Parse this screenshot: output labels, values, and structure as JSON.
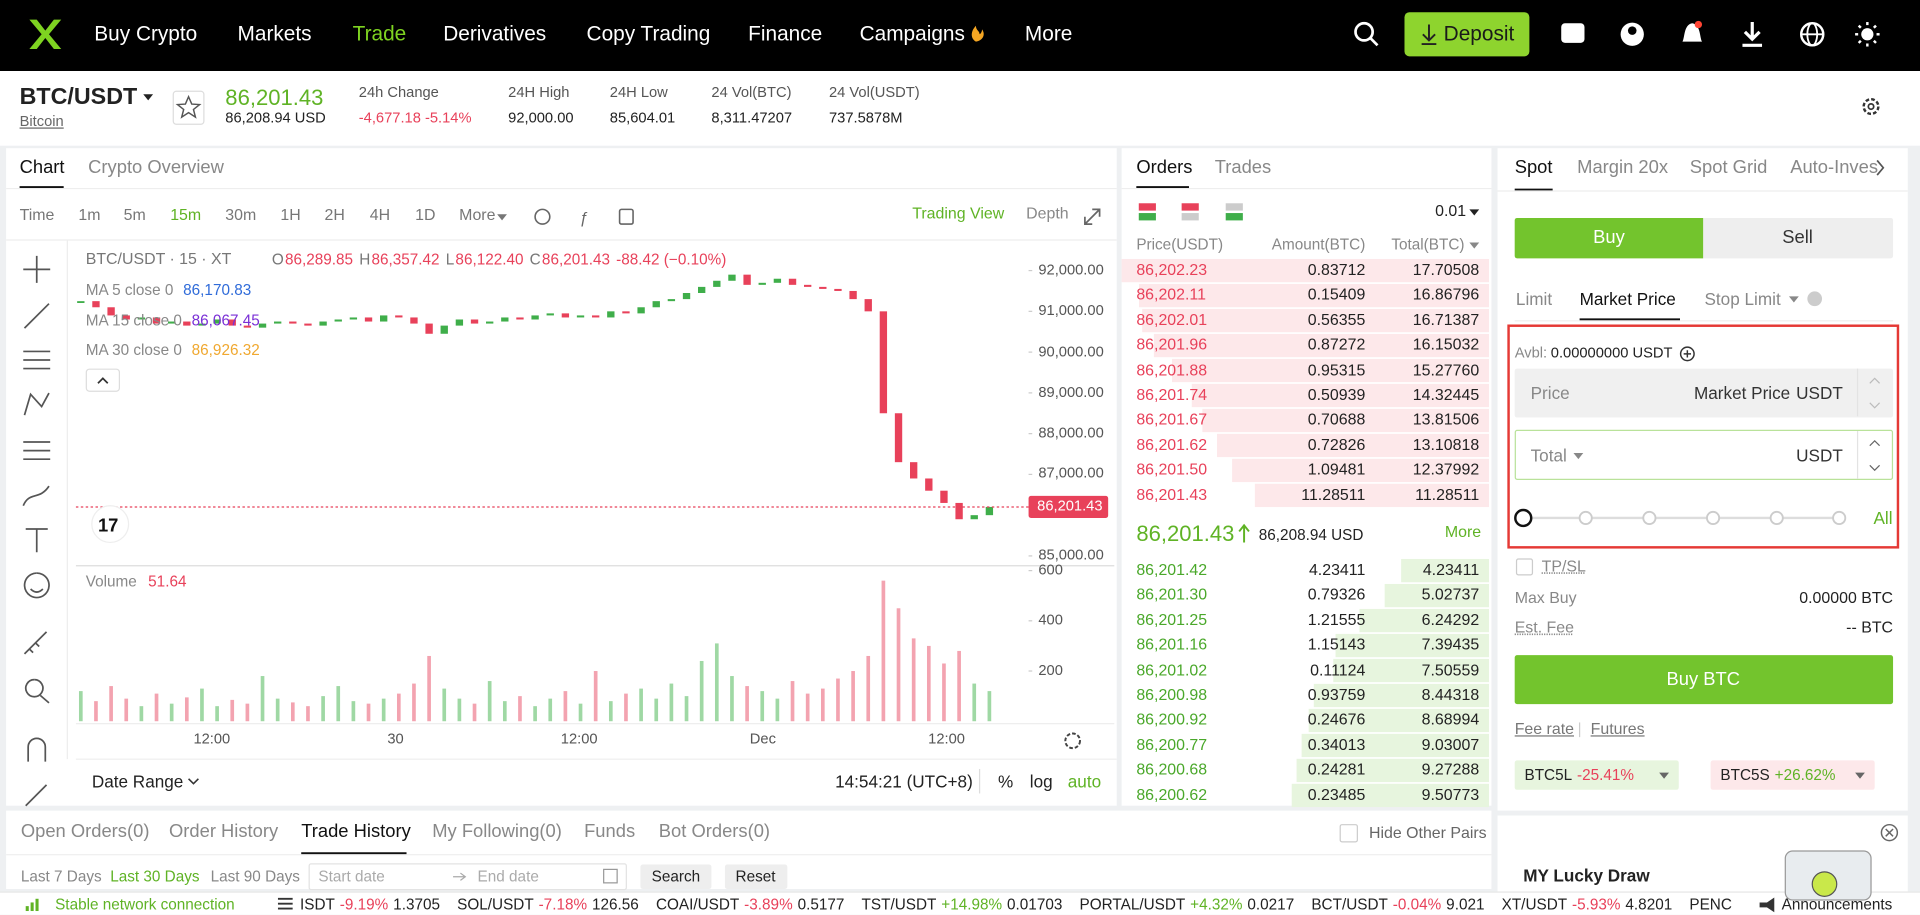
{
  "nav": {
    "items": [
      "Buy Crypto",
      "Markets",
      "Trade",
      "Derivatives",
      "Copy Trading",
      "Finance",
      "Campaigns",
      "More"
    ],
    "active": 2,
    "deposit": "Deposit"
  },
  "ticker": {
    "pair": "BTC/USDT",
    "name": "Bitcoin",
    "price": "86,201.43",
    "price_usd": "86,208.94 USD",
    "stats": [
      {
        "label": "24h Change",
        "value": "-4,677.18 -5.14%"
      },
      {
        "label": "24H High",
        "value": "92,000.00"
      },
      {
        "label": "24H Low",
        "value": "85,604.01"
      },
      {
        "label": "24 Vol(BTC)",
        "value": "8,311.47207"
      },
      {
        "label": "24 Vol(USDT)",
        "value": "737.5878M"
      }
    ]
  },
  "chart": {
    "tabs": [
      "Chart",
      "Crypto Overview"
    ],
    "intervals": [
      "Time",
      "1m",
      "5m",
      "15m",
      "30m",
      "1H",
      "2H",
      "4H",
      "1D",
      "More"
    ],
    "active_interval": 3,
    "views": [
      "Trading View",
      "Depth"
    ],
    "symbol": "BTC/USDT · 15 · XT",
    "ohlc": [
      "O",
      "86,289.85",
      "H",
      "86,357.42",
      "L",
      "86,122.40",
      "C",
      "86,201.43"
    ],
    "change": "-88.42 (−0.10%)",
    "ma": [
      {
        "name": "MA 5 close 0",
        "value": "86,170.83",
        "color": "#2f6bd9"
      },
      {
        "name": "MA 15 close 0",
        "value": "86,067.45",
        "color": "#7a2fd6"
      },
      {
        "name": "MA 30 close 0",
        "value": "86,926.32",
        "color": "#f0a830"
      }
    ],
    "ylim": [
      84820,
      92630
    ],
    "yticks": [
      {
        "value": 92000,
        "label": "92,000.00"
      },
      {
        "value": 91000,
        "label": "91,000.00"
      },
      {
        "value": 90000,
        "label": "90,000.00"
      },
      {
        "value": 89000,
        "label": "89,000.00"
      },
      {
        "value": 88000,
        "label": "88,000.00"
      },
      {
        "value": 87000,
        "label": "87,000.00"
      },
      {
        "value": 85000,
        "label": "85,000.00"
      }
    ],
    "price_tag": "86,201.43",
    "close": [
      91250,
      91100,
      90900,
      90800,
      90850,
      90700,
      90750,
      90650,
      90700,
      90800,
      90650,
      90600,
      90700,
      90750,
      90700,
      90650,
      90750,
      90800,
      90850,
      90750,
      90900,
      90850,
      90700,
      90450,
      90650,
      90800,
      90700,
      90750,
      90850,
      90800,
      90900,
      90950,
      90850,
      90900,
      90850,
      91000,
      90950,
      91100,
      91250,
      91300,
      91450,
      91600,
      91750,
      91900,
      91650,
      91700,
      91800,
      91650,
      91600,
      91550,
      91500,
      91300,
      91000,
      88500,
      87300,
      86900,
      86600,
      86300,
      85900,
      86000,
      86201.43
    ],
    "volume_label": "Volume",
    "volume_value": "51.64",
    "vlim": [
      0,
      600
    ],
    "vticks": [
      600,
      400,
      200
    ],
    "volume": [
      120,
      80,
      140,
      90,
      60,
      110,
      70,
      95,
      130,
      60,
      85,
      70,
      180,
      90,
      75,
      60,
      100,
      140,
      80,
      70,
      90,
      110,
      150,
      260,
      130,
      90,
      70,
      160,
      80,
      100,
      60,
      90,
      120,
      70,
      200,
      80,
      110,
      130,
      90,
      150,
      100,
      240,
      310,
      180,
      140,
      120,
      90,
      160,
      110,
      130,
      170,
      200,
      260,
      560,
      450,
      330,
      300,
      230,
      280,
      150,
      120
    ],
    "time_labels": [
      "12:00",
      "30",
      "12:00",
      "Dec",
      "12:00"
    ],
    "date_range": "Date Range",
    "clock": "14:54:21 (UTC+8)",
    "scale_options": [
      "%",
      "log",
      "auto"
    ]
  },
  "orderbook": {
    "tabs": [
      "Orders",
      "Trades"
    ],
    "precision": "0.01",
    "columns": [
      "Price(USDT)",
      "Amount(BTC)",
      "Total(BTC)"
    ],
    "asks": [
      [
        "86,202.23",
        "0.83712",
        "17.70508"
      ],
      [
        "86,202.11",
        "0.15409",
        "16.86796"
      ],
      [
        "86,202.01",
        "0.56355",
        "16.71387"
      ],
      [
        "86,201.96",
        "0.87272",
        "16.15032"
      ],
      [
        "86,201.88",
        "0.95315",
        "15.27760"
      ],
      [
        "86,201.74",
        "0.50939",
        "14.32445"
      ],
      [
        "86,201.67",
        "0.70688",
        "13.81506"
      ],
      [
        "86,201.62",
        "0.72826",
        "13.10818"
      ],
      [
        "86,201.50",
        "1.09481",
        "12.37992"
      ],
      [
        "86,201.43",
        "11.28511",
        "11.28511"
      ]
    ],
    "last_price": "86,201.43",
    "last_price_usd": "86,208.94 USD",
    "more": "More",
    "bids": [
      [
        "86,201.42",
        "4.23411",
        "4.23411"
      ],
      [
        "86,201.30",
        "0.79326",
        "5.02737"
      ],
      [
        "86,201.25",
        "1.21555",
        "6.24292"
      ],
      [
        "86,201.16",
        "1.15143",
        "7.39435"
      ],
      [
        "86,201.02",
        "0.11124",
        "7.50559"
      ],
      [
        "86,200.98",
        "0.93759",
        "8.44318"
      ],
      [
        "86,200.92",
        "0.24676",
        "8.68994"
      ],
      [
        "86,200.77",
        "0.34013",
        "9.03007"
      ],
      [
        "86,200.68",
        "0.24281",
        "9.27288"
      ],
      [
        "86,200.62",
        "0.23485",
        "9.50773"
      ]
    ]
  },
  "trade": {
    "tabs": [
      "Spot",
      "Margin 20x",
      "Spot Grid",
      "Auto-Inves"
    ],
    "sides": [
      "Buy",
      "Sell"
    ],
    "order_types": [
      "Limit",
      "Market Price",
      "Stop Limit"
    ],
    "avbl_label": "Avbl:",
    "avbl": "0.00000000 USDT",
    "price_label": "Price",
    "price_value": "Market Price",
    "unit": "USDT",
    "total_label": "Total",
    "all": "All",
    "tpsl": "TP/SL",
    "max_buy_label": "Max Buy",
    "max_buy": "0.00000 BTC",
    "fee_label": "Est. Fee",
    "fee": "-- BTC",
    "submit": "Buy BTC",
    "links": [
      "Fee rate",
      "Futures"
    ],
    "etfs": [
      {
        "name": "BTC5L",
        "change": "-25.41%"
      },
      {
        "name": "BTC5S",
        "change": "+26.62%"
      }
    ],
    "promo": "MY Lucky Draw"
  },
  "history": {
    "tabs": [
      "Open Orders(0)",
      "Order History",
      "Trade History",
      "My Following(0)",
      "Funds",
      "Bot Orders(0)"
    ],
    "active": 2,
    "hide_pairs": "Hide Other Pairs",
    "ranges": [
      "Last 7 Days",
      "Last 30 Days",
      "Last 90 Days"
    ],
    "active_range": 1,
    "start": "Start date",
    "end": "End date",
    "search": "Search",
    "reset": "Reset"
  },
  "status": {
    "network": "Stable network connection",
    "tickers": [
      {
        "pair": "ISDT",
        "change": "-9.19%",
        "price": "1.3705"
      },
      {
        "pair": "SOL/USDT",
        "change": "-7.18%",
        "price": "126.56"
      },
      {
        "pair": "COAI/USDT",
        "change": "-3.89%",
        "price": "0.5177"
      },
      {
        "pair": "TST/USDT",
        "change": "+14.98%",
        "price": "0.01703"
      },
      {
        "pair": "PORTAL/USDT",
        "change": "+4.32%",
        "price": "0.0217"
      },
      {
        "pair": "BCT/USDT",
        "change": "-0.04%",
        "price": "9.021"
      },
      {
        "pair": "XT/USDT",
        "change": "-5.93%",
        "price": "4.8201"
      },
      {
        "pair": "PENC"
      }
    ],
    "announcements": "Announcements"
  }
}
